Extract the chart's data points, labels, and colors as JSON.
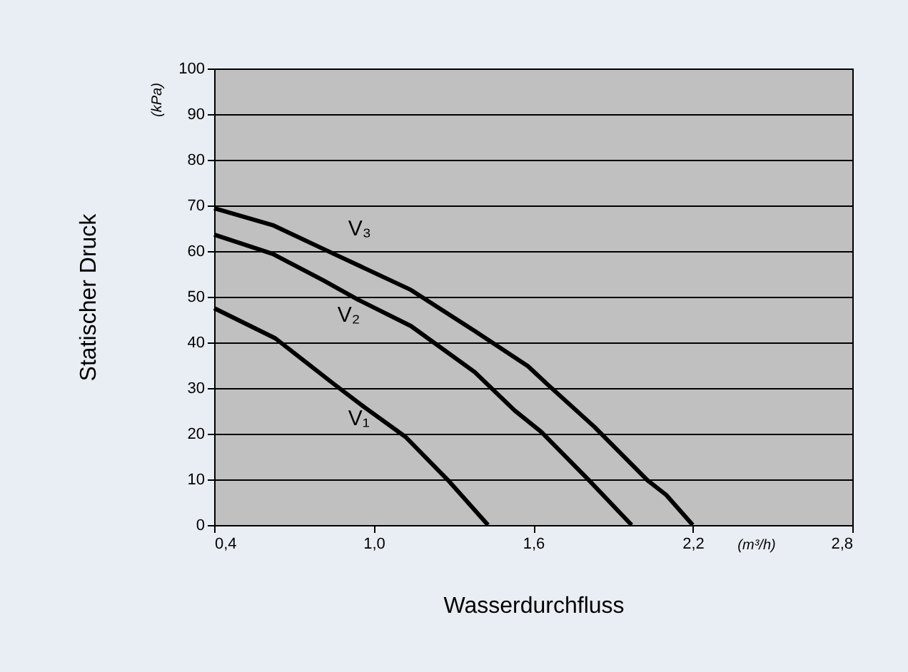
{
  "chart_data": {
    "type": "line",
    "xlabel": "Wasserdurchfluss",
    "ylabel": "Statischer Druck",
    "annotations": [
      "(kPa)",
      "(m³/h)"
    ],
    "xlim": [
      0.4,
      2.8
    ],
    "ylim": [
      0,
      100
    ],
    "xticks": [
      {
        "value": 0.4,
        "label": "0,4"
      },
      {
        "value": 1.0,
        "label": "1,0"
      },
      {
        "value": 1.6,
        "label": "1,6"
      },
      {
        "value": 2.2,
        "label": "2,2"
      },
      {
        "value": 2.8,
        "label": "2,8"
      }
    ],
    "yticks": [
      0,
      10,
      20,
      30,
      40,
      50,
      60,
      70,
      80,
      90,
      100
    ],
    "grid": "y",
    "legend": false,
    "marker": "none",
    "line_style": "solid",
    "series": [
      {
        "name": "V₁",
        "color": "#000000",
        "x": [
          0.4,
          0.63,
          0.85,
          0.97,
          1.12,
          1.28,
          1.43
        ],
        "values": [
          47.5,
          40.9,
          30.9,
          25.6,
          19.3,
          9.8,
          0
        ]
      },
      {
        "name": "V₂",
        "color": "#000000",
        "x": [
          0.4,
          0.62,
          0.81,
          0.94,
          1.14,
          1.38,
          1.53,
          1.63,
          1.81,
          1.97
        ],
        "values": [
          63.6,
          59.4,
          53.6,
          49.4,
          43.6,
          33.5,
          25.1,
          20.4,
          9.8,
          0
        ]
      },
      {
        "name": "V₃",
        "color": "#000000",
        "x": [
          0.4,
          0.62,
          0.85,
          1.14,
          1.38,
          1.58,
          1.65,
          1.83,
          2.03,
          2.1,
          2.2
        ],
        "values": [
          69.4,
          65.7,
          59.4,
          51.5,
          42.5,
          34.8,
          31,
          21.5,
          9.8,
          6.6,
          0
        ]
      }
    ]
  }
}
